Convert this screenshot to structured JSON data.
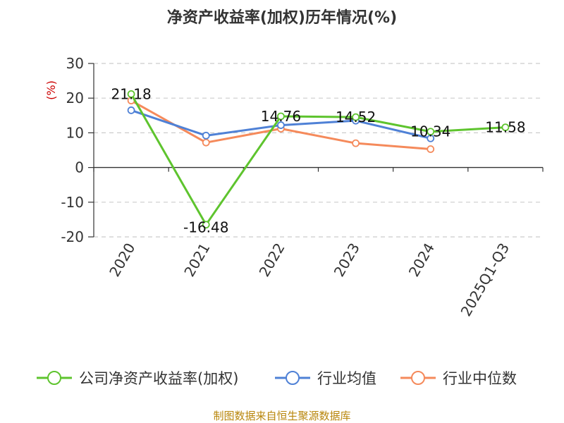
{
  "chart_data": {
    "type": "line",
    "title": "净资产收益率(加权)历年情况(%)",
    "ylabel": "(%)",
    "xlabel": "",
    "categories": [
      "2020",
      "2021",
      "2022",
      "2023",
      "2024",
      "2025Q1-Q3"
    ],
    "ylim": [
      -20,
      30
    ],
    "yticks": [
      30,
      20,
      10,
      0,
      -10,
      -20
    ],
    "grid": true,
    "legend_position": "bottom",
    "series": [
      {
        "name": "公司净资产收益率(加权)",
        "color": "#5ec42e",
        "values": [
          21.18,
          -16.48,
          14.76,
          14.52,
          10.34,
          11.58
        ],
        "labels": [
          "21.18",
          "-16.48",
          "14.76",
          "14.52",
          "10.34",
          "11.58"
        ]
      },
      {
        "name": "行业均值",
        "color": "#4f81d6",
        "values": [
          16.5,
          9.2,
          12.2,
          13.5,
          8.4,
          null
        ]
      },
      {
        "name": "行业中位数",
        "color": "#f58a5b",
        "values": [
          19.3,
          7.2,
          11.2,
          7.0,
          5.3,
          null
        ]
      }
    ]
  },
  "footer": {
    "source": "制图数据来自恒生聚源数据库"
  }
}
